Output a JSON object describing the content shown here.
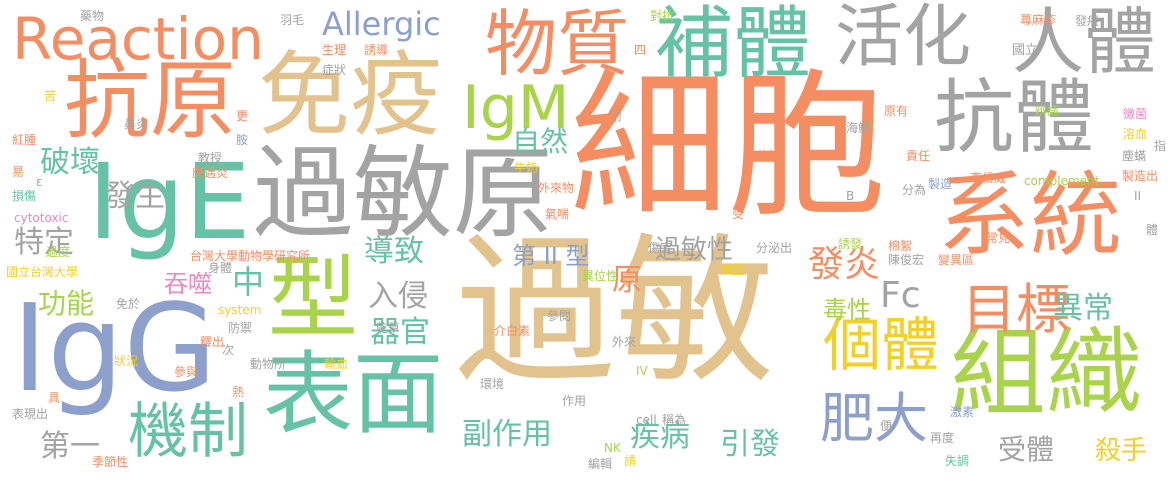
{
  "words": [
    {
      "text": "過敏",
      "color": "#e2c38e"
    },
    {
      "text": "細胞",
      "color": "#f58d63"
    },
    {
      "text": "過敏原",
      "color": "#a3a3a3"
    },
    {
      "text": "免疫",
      "color": "#e2c38e"
    },
    {
      "text": "系統",
      "color": "#f58d63"
    },
    {
      "text": "抗原",
      "color": "#f58d63"
    },
    {
      "text": "IgE",
      "color": "#66c2a5"
    },
    {
      "text": "IgG",
      "color": "#8da0cb"
    },
    {
      "text": "型",
      "color": "#a8d34b"
    },
    {
      "text": "表面",
      "color": "#66c2a5"
    },
    {
      "text": "組織",
      "color": "#a8d34b"
    },
    {
      "text": "抗體",
      "color": "#a3a3a3"
    },
    {
      "text": "補體",
      "color": "#66c2a5"
    },
    {
      "text": "物質",
      "color": "#f58d63"
    },
    {
      "text": "活化",
      "color": "#a3a3a3"
    },
    {
      "text": "人體",
      "color": "#a3a3a3"
    },
    {
      "text": "Reaction",
      "color": "#f58d63"
    },
    {
      "text": "機制",
      "color": "#66c2a5"
    },
    {
      "text": "個體",
      "color": "#f4cf2a"
    },
    {
      "text": "目標",
      "color": "#f58d63"
    },
    {
      "text": "IgM",
      "color": "#a8d34b"
    },
    {
      "text": "Allergic",
      "color": "#8da0cb"
    },
    {
      "text": "肥大",
      "color": "#8da0cb"
    },
    {
      "text": "破壞",
      "color": "#66c2a5"
    },
    {
      "text": "發生",
      "color": "#a3a3a3"
    },
    {
      "text": "自然",
      "color": "#66c2a5"
    },
    {
      "text": "特定",
      "color": "#a3a3a3"
    },
    {
      "text": "功能",
      "color": "#a8d34b"
    },
    {
      "text": "導致",
      "color": "#66c2a5"
    },
    {
      "text": "第 II 型",
      "color": "#8da0cb"
    },
    {
      "text": "過敏性",
      "color": "#a3a3a3"
    },
    {
      "text": "發炎",
      "color": "#f58d63"
    },
    {
      "text": "中",
      "color": "#66c2a5"
    },
    {
      "text": "入侵",
      "color": "#a3a3a3"
    },
    {
      "text": "器官",
      "color": "#66c2a5"
    },
    {
      "text": "吞噬",
      "color": "#e58cc1"
    },
    {
      "text": "Fc",
      "color": "#a3a3a3"
    },
    {
      "text": "異常",
      "color": "#66c2a5"
    },
    {
      "text": "毒性",
      "color": "#a8d34b"
    },
    {
      "text": "原",
      "color": "#f58d63"
    },
    {
      "text": "副作用",
      "color": "#66c2a5"
    },
    {
      "text": "疾病",
      "color": "#66c2a5"
    },
    {
      "text": "引發",
      "color": "#66c2a5"
    },
    {
      "text": "第一",
      "color": "#a3a3a3"
    },
    {
      "text": "受體",
      "color": "#a3a3a3"
    },
    {
      "text": "殺手",
      "color": "#f4cf2a"
    },
    {
      "text": "complement",
      "color": "#a8d34b"
    },
    {
      "text": "cytotoxic",
      "color": "#e58cc1"
    },
    {
      "text": "台灣大學動物學研究所",
      "color": "#f58d63"
    },
    {
      "text": "國立台灣大學",
      "color": "#f4cf2a"
    },
    {
      "text": "國立",
      "color": "#a3a3a3"
    },
    {
      "text": "蕁麻疹",
      "color": "#f58d63"
    },
    {
      "text": "發癢",
      "color": "#a3a3a3"
    },
    {
      "text": "原有",
      "color": "#f58d63"
    },
    {
      "text": "辨識",
      "color": "#a8d34b"
    },
    {
      "text": "黴菌",
      "color": "#e58cc1"
    },
    {
      "text": "溶血",
      "color": "#f4cf2a"
    },
    {
      "text": "海鮮",
      "color": "#a3a3a3"
    },
    {
      "text": "塵蟎",
      "color": "#a3a3a3"
    },
    {
      "text": "責任",
      "color": "#f58d63"
    },
    {
      "text": "李岱威",
      "color": "#f58d63"
    },
    {
      "text": "製造",
      "color": "#8da0cb"
    },
    {
      "text": "製造出",
      "color": "#f58d63"
    },
    {
      "text": "分為",
      "color": "#a3a3a3"
    },
    {
      "text": "常見",
      "color": "#f58d63"
    },
    {
      "text": "變異區",
      "color": "#f58d63"
    },
    {
      "text": "棉絮",
      "color": "#f58d63"
    },
    {
      "text": "陳俊宏",
      "color": "#a3a3a3"
    },
    {
      "text": "誘發",
      "color": "#a8d34b"
    },
    {
      "text": "分泌出",
      "color": "#a3a3a3"
    },
    {
      "text": "激素",
      "color": "#8da0cb"
    },
    {
      "text": "再度",
      "color": "#a3a3a3"
    },
    {
      "text": "失調",
      "color": "#66c2a5"
    },
    {
      "text": "便",
      "color": "#a3a3a3"
    },
    {
      "text": "藥物",
      "color": "#a3a3a3"
    },
    {
      "text": "羽毛",
      "color": "#a3a3a3"
    },
    {
      "text": "對抗",
      "color": "#a8d34b"
    },
    {
      "text": "生理",
      "color": "#f58d63"
    },
    {
      "text": "誘導",
      "color": "#f58d63"
    },
    {
      "text": "症狀",
      "color": "#a3a3a3"
    },
    {
      "text": "鼻炎",
      "color": "#a3a3a3"
    },
    {
      "text": "苦",
      "color": "#f4cf2a"
    },
    {
      "text": "更",
      "color": "#f58d63"
    },
    {
      "text": "胺",
      "color": "#8da0cb"
    },
    {
      "text": "紅腫",
      "color": "#f58d63"
    },
    {
      "text": "教授",
      "color": "#a3a3a3"
    },
    {
      "text": "應邁炎",
      "color": "#f58d63"
    },
    {
      "text": "牛奶",
      "color": "#f4cf2a"
    },
    {
      "text": "外來物",
      "color": "#f58d63"
    },
    {
      "text": "花粉",
      "color": "#f58d63"
    },
    {
      "text": "氣喘",
      "color": "#f58d63"
    },
    {
      "text": "易",
      "color": "#f58d63"
    },
    {
      "text": "損傷",
      "color": "#66c2a5"
    },
    {
      "text": "過度",
      "color": "#a8d34b"
    },
    {
      "text": "身體",
      "color": "#a3a3a3"
    },
    {
      "text": "吞噬",
      "color": "#e58cc1"
    },
    {
      "text": "免於",
      "color": "#a3a3a3"
    },
    {
      "text": "system",
      "color": "#f4cf2a"
    },
    {
      "text": "防禦",
      "color": "#a3a3a3"
    },
    {
      "text": "釋出",
      "color": "#f58d63"
    },
    {
      "text": "次",
      "color": "#a3a3a3"
    },
    {
      "text": "動物所",
      "color": "#a3a3a3"
    },
    {
      "text": "輸血",
      "color": "#f4cf2a"
    },
    {
      "text": "狀況",
      "color": "#f4cf2a"
    },
    {
      "text": "參與",
      "color": "#f58d63"
    },
    {
      "text": "熱",
      "color": "#f58d63"
    },
    {
      "text": "表現出",
      "color": "#a3a3a3"
    },
    {
      "text": "季節性",
      "color": "#f58d63"
    },
    {
      "text": "具",
      "color": "#f58d63"
    },
    {
      "text": "乾草",
      "color": "#a3a3a3"
    },
    {
      "text": "參閱",
      "color": "#a3a3a3"
    },
    {
      "text": "介白素",
      "color": "#f58d63"
    },
    {
      "text": "環境",
      "color": "#a3a3a3"
    },
    {
      "text": "作用",
      "color": "#a3a3a3"
    },
    {
      "text": "傷害",
      "color": "#a3a3a3"
    },
    {
      "text": "類型",
      "color": "#f4cf2a"
    },
    {
      "text": "異位性",
      "color": "#a8d34b"
    },
    {
      "text": "外來",
      "color": "#a3a3a3"
    },
    {
      "text": "NK",
      "color": "#a8d34b"
    },
    {
      "text": "編輯",
      "color": "#a3a3a3"
    },
    {
      "text": "請",
      "color": "#f4cf2a"
    },
    {
      "text": "cell",
      "color": "#a3a3a3"
    },
    {
      "text": "稱為",
      "color": "#a3a3a3"
    },
    {
      "text": "IV",
      "color": "#a8d34b"
    },
    {
      "text": "受",
      "color": "#f58d63"
    },
    {
      "text": "附",
      "color": "#a3a3a3"
    },
    {
      "text": "四",
      "color": "#f58d63"
    },
    {
      "text": "B",
      "color": "#a3a3a3"
    },
    {
      "text": "II",
      "color": "#a3a3a3"
    },
    {
      "text": "指",
      "color": "#a3a3a3"
    },
    {
      "text": "體",
      "color": "#a3a3a3"
    },
    {
      "text": "ε",
      "color": "#a3a3a3"
    }
  ]
}
